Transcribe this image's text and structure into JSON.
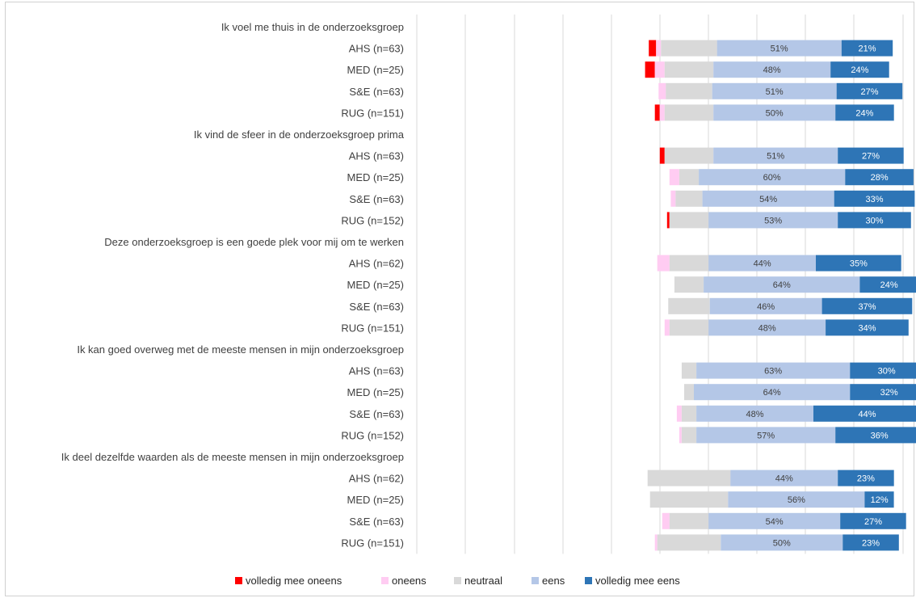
{
  "chart_data": {
    "type": "bar",
    "orientation": "horizontal",
    "stacked": true,
    "diverging": true,
    "grid": true,
    "legend_position": "bottom",
    "series": [
      {
        "name": "volledig mee oneens",
        "color": "#ff0000"
      },
      {
        "name": "oneens",
        "color": "#ffccf2"
      },
      {
        "name": "neutraal",
        "color": "#d9d9d9"
      },
      {
        "name": "eens",
        "color": "#b4c7e7"
      },
      {
        "name": "volledig mee eens",
        "color": "#2e75b6"
      }
    ],
    "groups": [
      {
        "question": "Ik voel me thuis in de onderzoeksgroep",
        "rows": [
          {
            "label": "AHS (n=63)",
            "values": [
              3,
              2,
              23,
              51,
              21
            ],
            "labels": [
              "",
              "",
              "",
              "51%",
              "21%"
            ]
          },
          {
            "label": "MED (n=25)",
            "values": [
              4,
              4,
              20,
              48,
              24
            ],
            "labels": [
              "",
              "",
              "",
              "48%",
              "24%"
            ]
          },
          {
            "label": "S&E (n=63)",
            "values": [
              0,
              3,
              19,
              51,
              27
            ],
            "labels": [
              "",
              "",
              "",
              "51%",
              "27%"
            ]
          },
          {
            "label": "RUG (n=151)",
            "values": [
              2,
              2,
              20,
              50,
              24
            ],
            "labels": [
              "",
              "",
              "",
              "50%",
              "24%"
            ]
          }
        ]
      },
      {
        "question": "Ik vind de sfeer in de onderzoeksgroep prima",
        "rows": [
          {
            "label": "AHS (n=63)",
            "values": [
              2,
              0,
              20,
              51,
              27
            ],
            "labels": [
              "",
              "",
              "",
              "51%",
              "27%"
            ]
          },
          {
            "label": "MED (n=25)",
            "values": [
              0,
              4,
              8,
              60,
              28
            ],
            "labels": [
              "",
              "",
              "",
              "60%",
              "28%"
            ]
          },
          {
            "label": "S&E (n=63)",
            "values": [
              0,
              2,
              11,
              54,
              33
            ],
            "labels": [
              "",
              "",
              "",
              "54%",
              "33%"
            ]
          },
          {
            "label": "RUG (n=152)",
            "values": [
              1,
              0,
              16,
              53,
              30
            ],
            "labels": [
              "",
              "",
              "",
              "53%",
              "30%"
            ]
          }
        ]
      },
      {
        "question": "Deze onderzoeksgroep is een goede plek voor mij om te werken",
        "rows": [
          {
            "label": "AHS (n=62)",
            "values": [
              0,
              5,
              16,
              44,
              35
            ],
            "labels": [
              "",
              "",
              "",
              "44%",
              "35%"
            ]
          },
          {
            "label": "MED (n=25)",
            "values": [
              0,
              0,
              12,
              64,
              24
            ],
            "labels": [
              "",
              "",
              "",
              "64%",
              "24%"
            ]
          },
          {
            "label": "S&E (n=63)",
            "values": [
              0,
              0,
              17,
              46,
              37
            ],
            "labels": [
              "",
              "",
              "",
              "46%",
              "37%"
            ]
          },
          {
            "label": "RUG (n=151)",
            "values": [
              0,
              2,
              16,
              48,
              34
            ],
            "labels": [
              "",
              "",
              "",
              "48%",
              "34%"
            ]
          }
        ]
      },
      {
        "question": "Ik kan goed overweg met de meeste mensen in mijn onderzoeksgroep",
        "rows": [
          {
            "label": "AHS (n=63)",
            "values": [
              0,
              0,
              6,
              63,
              30
            ],
            "labels": [
              "",
              "",
              "",
              "63%",
              "30%"
            ]
          },
          {
            "label": "MED (n=25)",
            "values": [
              0,
              0,
              4,
              64,
              32
            ],
            "labels": [
              "",
              "",
              "",
              "64%",
              "32%"
            ]
          },
          {
            "label": "S&E (n=63)",
            "values": [
              0,
              2,
              6,
              48,
              44
            ],
            "labels": [
              "",
              "",
              "",
              "48%",
              "44%"
            ]
          },
          {
            "label": "RUG (n=152)",
            "values": [
              0,
              1,
              6,
              57,
              36
            ],
            "labels": [
              "",
              "",
              "",
              "57%",
              "36%"
            ]
          }
        ]
      },
      {
        "question": "Ik deel dezelfde waarden als de meeste mensen in mijn onderzoeksgroep",
        "rows": [
          {
            "label": "AHS (n=62)",
            "values": [
              0,
              0,
              34,
              44,
              23
            ],
            "labels": [
              "",
              "",
              "",
              "44%",
              "23%"
            ]
          },
          {
            "label": "MED (n=25)",
            "values": [
              0,
              0,
              32,
              56,
              12
            ],
            "labels": [
              "",
              "",
              "",
              "56%",
              "12%"
            ]
          },
          {
            "label": "S&E (n=63)",
            "values": [
              0,
              3,
              16,
              54,
              27
            ],
            "labels": [
              "",
              "",
              "",
              "54%",
              "27%"
            ]
          },
          {
            "label": "RUG (n=151)",
            "values": [
              0,
              1,
              26,
              50,
              23
            ],
            "labels": [
              "",
              "",
              "",
              "50%",
              "23%"
            ]
          }
        ]
      }
    ],
    "data_label_colors": {
      "eens": "#404040",
      "volledig mee eens": "#ffffff"
    }
  }
}
